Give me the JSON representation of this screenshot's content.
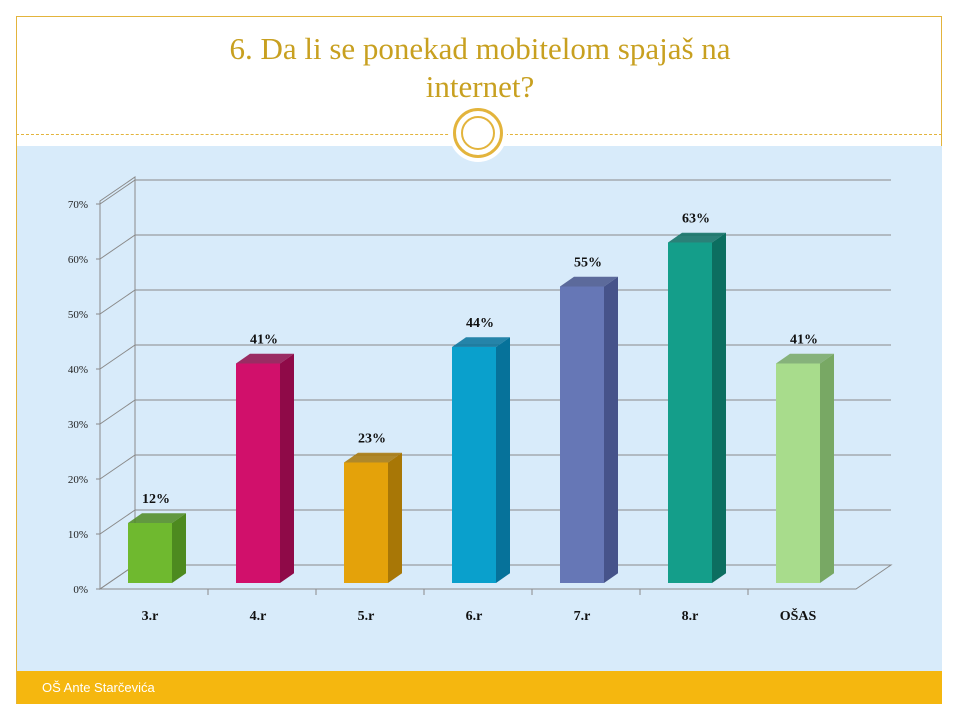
{
  "slide": {
    "title_line1": "6. Da li se ponekad mobitelom spajaš na",
    "title_line2": "internet?",
    "footer": "OŠ Ante Starčevića"
  },
  "colors": {
    "accent": "#e3b43c",
    "title": "#c8a020",
    "content_bg": "#d8ebfa",
    "footer_bg": "#f5b70f"
  },
  "chart_data": {
    "type": "bar",
    "categories": [
      "3.r",
      "4.r",
      "5.r",
      "6.r",
      "7.r",
      "8.r",
      "OŠAS"
    ],
    "values": [
      12,
      41,
      23,
      44,
      55,
      63,
      41
    ],
    "value_labels": [
      "12%",
      "41%",
      "23%",
      "44%",
      "55%",
      "63%",
      "41%"
    ],
    "y_ticks": [
      "0%",
      "10%",
      "20%",
      "30%",
      "40%",
      "50%",
      "60%",
      "70%"
    ],
    "ylim": [
      0,
      70
    ],
    "grid": true,
    "three_d": true,
    "bar_colors": [
      "#6fb92f",
      "#d1106b",
      "#e4a20a",
      "#0aa0cc",
      "#6677b6",
      "#149e8a",
      "#a8dc8c"
    ],
    "bar_side_colors": [
      "#4d8a1f",
      "#8f0a48",
      "#a87706",
      "#06729a",
      "#46538a",
      "#0c6e60",
      "#78a864"
    ]
  }
}
